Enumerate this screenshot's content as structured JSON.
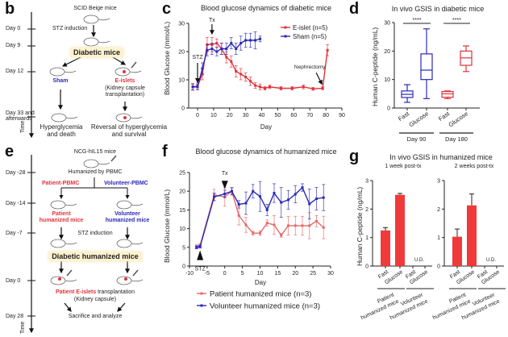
{
  "panels": {
    "b": {
      "label": "b",
      "timeline_label": "Time",
      "days": [
        "Day 0",
        "Day 9",
        "Day 12",
        "Day 33 and",
        "afterwards"
      ],
      "top_text": "SCID Beige mice",
      "stz": "STZ induction",
      "diabetic": "Diabetic mice",
      "sham": "Sham",
      "eislets": "E-islets",
      "eislets_sub1": "(Kidney capsule",
      "eislets_sub2": "transplantation)",
      "outcome_left1": "Hyperglycemia",
      "outcome_left2": "and death",
      "outcome_right1": "Reversal of hyperglycemia",
      "outcome_right2": "and survival"
    },
    "e": {
      "label": "e",
      "timeline_label": "Time",
      "days": [
        "Day -28",
        "Day -14",
        "Day -7",
        "Day 0",
        "Day 28"
      ],
      "top_text": "NCG-hIL15 mice",
      "humanized": "Humanized by PBMC",
      "patient_pbmc": "Patient-PBMC",
      "volunteer_pbmc": "Volunteer-PBMC",
      "patient_mice1": "Patient",
      "patient_mice2": "humanized mice",
      "volunteer_mice1": "Volunteer",
      "volunteer_mice2": "humanized mice",
      "stz": "STZ induction",
      "diabetic": "Diabetic humanized mice",
      "tx_red": "Patient E-islets",
      "tx_black": " transplantation",
      "tx_sub": "(Kidney capsule)",
      "final": "Sacrifice and analyze"
    },
    "c": {
      "label": "c"
    },
    "d": {
      "label": "d"
    },
    "f": {
      "label": "f"
    },
    "g": {
      "label": "g"
    }
  },
  "colors": {
    "red": "#e0333a",
    "blue": "#2a2ab8",
    "pink": "#e56a6a",
    "highlight": "#fdf2d0"
  },
  "chart_data": [
    {
      "id": "c",
      "type": "line",
      "title": "Blood glucose dynamics of diabetic mice",
      "xlabel": "Day",
      "ylabel": "Blood Glucose (mmol/L)",
      "xlim": [
        -5,
        90
      ],
      "ylim": [
        0,
        30
      ],
      "xticks": [
        0,
        10,
        20,
        30,
        40,
        50,
        60,
        70,
        80,
        90
      ],
      "yticks": [
        0,
        10,
        20,
        30
      ],
      "legend_position": "top-right",
      "annotations": [
        {
          "text": "STZ",
          "x": 0,
          "y": 10
        },
        {
          "text": "Tx",
          "x": 9,
          "y": 25
        },
        {
          "text": "Nephrectomy",
          "x": 77,
          "y": 10
        }
      ],
      "series": [
        {
          "name": "E-islet (n=5)",
          "color": "#e0333a",
          "x": [
            -3,
            0,
            3,
            6,
            9,
            12,
            15,
            18,
            21,
            24,
            27,
            30,
            33,
            36,
            39,
            42,
            45,
            52,
            59,
            66,
            72,
            78,
            81
          ],
          "y": [
            7.5,
            7.8,
            12,
            22.5,
            22.5,
            23,
            21,
            18,
            16.5,
            13,
            12,
            11,
            9.5,
            8,
            7.5,
            7.0,
            7.5,
            7.0,
            7.0,
            7.5,
            6.8,
            7.0,
            20.5
          ],
          "err": [
            1.2,
            1.2,
            2,
            2.5,
            2.5,
            1.5,
            2,
            2,
            2,
            2,
            2,
            1.5,
            1.5,
            1,
            1,
            0.6,
            0.6,
            0.6,
            0.6,
            0.7,
            0.5,
            0.5,
            2
          ]
        },
        {
          "name": "Sham (n=5)",
          "color": "#2a2ab8",
          "x": [
            -3,
            0,
            3,
            6,
            9,
            12,
            15,
            18,
            21,
            24,
            27,
            30,
            33,
            36,
            39
          ],
          "y": [
            7.5,
            7.5,
            14,
            20.5,
            21,
            20,
            21,
            21,
            23,
            21,
            23,
            24,
            24,
            24,
            24.5
          ],
          "err": [
            1,
            1,
            2,
            2,
            2,
            1.5,
            2,
            2,
            2,
            2,
            2.5,
            2.5,
            2.5,
            3,
            1
          ]
        }
      ]
    },
    {
      "id": "d",
      "type": "box",
      "title": "In vivo GSIS in diabetic mice",
      "ylabel": "Human C-peptide (ng/mL)",
      "ylim": [
        0,
        30
      ],
      "yticks": [
        0,
        10,
        20,
        30
      ],
      "categories": [
        "Fast",
        "Glucose",
        "Fast",
        "Glucose"
      ],
      "groups": [
        {
          "label": "Day 90",
          "span": [
            0,
            1
          ]
        },
        {
          "label": "Day 180",
          "span": [
            2,
            3
          ]
        }
      ],
      "significance": [
        {
          "text": "****",
          "span": [
            0,
            1
          ]
        },
        {
          "text": "****",
          "span": [
            2,
            3
          ]
        }
      ],
      "boxes": [
        {
          "min": 2,
          "q1": 3.7,
          "median": 4.8,
          "q3": 6,
          "max": 8.2,
          "color": "#2a2ab8"
        },
        {
          "min": 3.3,
          "q1": 10,
          "median": 13.3,
          "q3": 19,
          "max": 27.8,
          "color": "#2a2ab8"
        },
        {
          "min": 3.3,
          "q1": 3.8,
          "median": 5,
          "q3": 5.8,
          "max": 6,
          "color": "#e0333a"
        },
        {
          "min": 12.8,
          "q1": 15,
          "median": 17.6,
          "q3": 20,
          "max": 21.8,
          "color": "#e0333a"
        }
      ]
    },
    {
      "id": "f",
      "type": "line",
      "title": "Blood glucose dynamics of humanized mice",
      "xlabel": "Day",
      "ylabel": "Blood Glucose (mmol/L)",
      "xlim": [
        -10,
        30
      ],
      "ylim": [
        0,
        25
      ],
      "xticks": [
        -10,
        -5,
        0,
        5,
        10,
        15,
        20,
        25,
        30
      ],
      "yticks": [
        0,
        5,
        10,
        15,
        20,
        25
      ],
      "legend_position": "bottom",
      "annotations": [
        {
          "text": "STZ",
          "x": -7,
          "y": 4
        },
        {
          "text": "Tx",
          "x": 0,
          "y": 22
        }
      ],
      "series": [
        {
          "name": "Patient humanized mice (n=3)",
          "color": "#e56a6a",
          "x": [
            -8,
            -7,
            -3,
            0,
            2,
            4,
            6,
            8,
            10,
            12,
            14,
            16,
            18,
            20,
            22,
            24,
            26,
            28
          ],
          "y": [
            5.2,
            5.5,
            19,
            18.5,
            20,
            13.5,
            11,
            8.8,
            8.8,
            11.5,
            11,
            8.2,
            10.8,
            10.8,
            10.8,
            10.8,
            12,
            10.3
          ],
          "err": [
            0.5,
            0.5,
            1.5,
            2.5,
            0.8,
            2.5,
            2,
            0.5,
            0.6,
            0.8,
            2.5,
            0.5,
            2.5,
            2.5,
            2.5,
            3.5,
            1.5,
            3
          ]
        },
        {
          "name": "Volunteer humanized mice (n=3)",
          "color": "#2a2ab8",
          "x": [
            -8,
            -7,
            -3,
            0,
            2,
            4,
            6,
            8,
            10,
            12,
            14,
            16,
            18,
            20,
            22,
            24,
            26,
            28
          ],
          "y": [
            5,
            5.2,
            18.5,
            19.3,
            20,
            16.5,
            16.8,
            20,
            18.6,
            15,
            19.5,
            17,
            17.7,
            19.2,
            21,
            16.6,
            18,
            18.3
          ],
          "err": [
            0.4,
            0.4,
            1,
            1,
            1,
            1,
            3,
            1.8,
            4,
            1.5,
            2.5,
            4,
            2.5,
            2.3,
            1,
            4,
            3,
            3.5
          ]
        }
      ]
    },
    {
      "id": "g",
      "type": "bar",
      "title": "In vivo GSIS in humanized mice",
      "ylabel": "Human C-peptide (ng/mL)",
      "ylim": [
        0,
        3
      ],
      "yticks": [
        0,
        1,
        2,
        3
      ],
      "categories": [
        "Fast",
        "Glucose",
        "Fast",
        "Glucose"
      ],
      "groups": [
        "Patient humanized mice",
        "Volunteer humanized mice"
      ],
      "color": "#f03a3a",
      "subplots": [
        {
          "subtitle": "1 week post-tx",
          "values": [
            1.25,
            2.5,
            null,
            null
          ],
          "err": [
            0.1,
            0.05,
            null,
            null
          ],
          "note": "U.D."
        },
        {
          "subtitle": "2 weeks post-tx",
          "values": [
            1.03,
            2.13,
            null,
            null
          ],
          "err": [
            0.27,
            0.4,
            null,
            null
          ],
          "note": "U.D."
        }
      ]
    }
  ]
}
